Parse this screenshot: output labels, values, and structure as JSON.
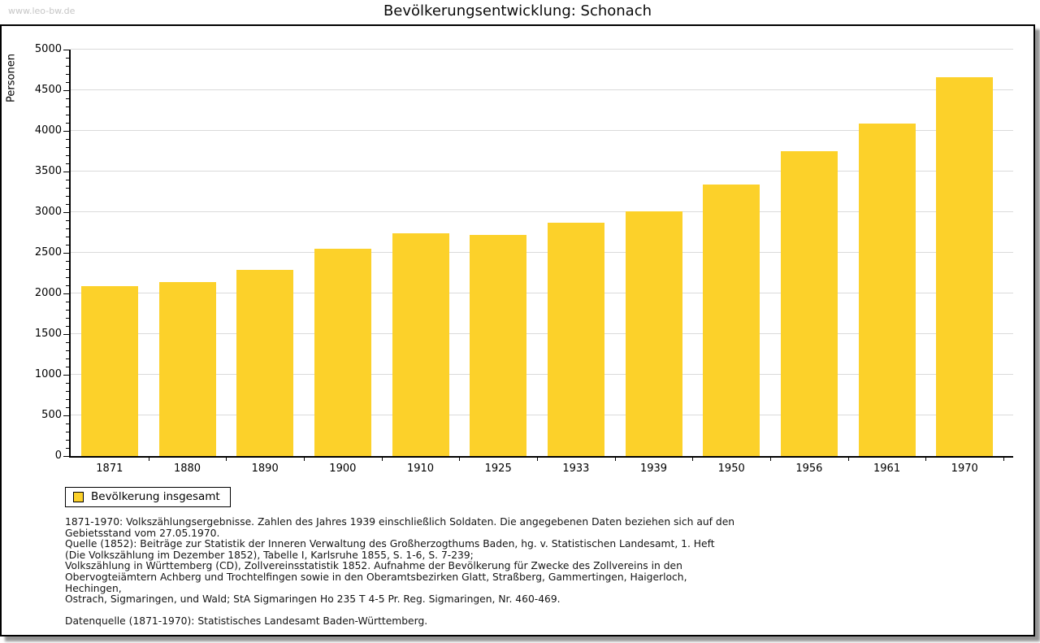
{
  "page": {
    "watermark": "www.leo-bw.de",
    "title": "Bevölkerungsentwicklung: Schonach"
  },
  "chart_data": {
    "type": "bar",
    "title": "Bevölkerungsentwicklung: Schonach",
    "ylabel": "Personen",
    "xlabel": "",
    "ylim": [
      0,
      5000
    ],
    "ytick_major_step": 500,
    "ytick_minor_step": 100,
    "grid": true,
    "legend_position": "bottom-left",
    "categories": [
      "1871",
      "1880",
      "1890",
      "1900",
      "1910",
      "1925",
      "1933",
      "1939",
      "1950",
      "1956",
      "1961",
      "1970"
    ],
    "series": [
      {
        "name": "Bevölkerung insgesamt",
        "values": [
          2095,
          2145,
          2290,
          2550,
          2740,
          2720,
          2875,
          3015,
          3345,
          3755,
          4095,
          4665
        ]
      }
    ],
    "colors": {
      "bar": "#fcd12a",
      "grid": "#dadada",
      "axis": "#000000"
    }
  },
  "legend": {
    "label": "Bevölkerung insgesamt"
  },
  "footnotes": {
    "lines": [
      "1871-1970: Volkszählungsergebnisse. Zahlen des Jahres 1939 einschließlich Soldaten. Die angegebenen Daten beziehen sich auf den",
      "Gebietsstand vom 27.05.1970.",
      "Quelle (1852): Beiträge zur Statistik der Inneren Verwaltung des Großherzogthums Baden, hg. v. Statistischen Landesamt, 1. Heft",
      "(Die Volkszählung im Dezember 1852), Tabelle I, Karlsruhe 1855, S. 1-6, S. 7-239;",
      "Volkszählung in Württemberg (CD), Zollvereinsstatistik 1852. Aufnahme der Bevölkerung für Zwecke des Zollvereins in den",
      "Obervogteiämtern Achberg und Trochtelfingen sowie in den Oberamtsbezirken Glatt, Straßberg, Gammertingen, Haigerloch, Hechingen,",
      "Ostrach, Sigmaringen, und Wald; StA Sigmaringen Ho 235 T 4-5 Pr. Reg. Sigmaringen, Nr. 460-469."
    ],
    "datasource": "Datenquelle (1871-1970): Statistisches Landesamt Baden-Württemberg."
  }
}
